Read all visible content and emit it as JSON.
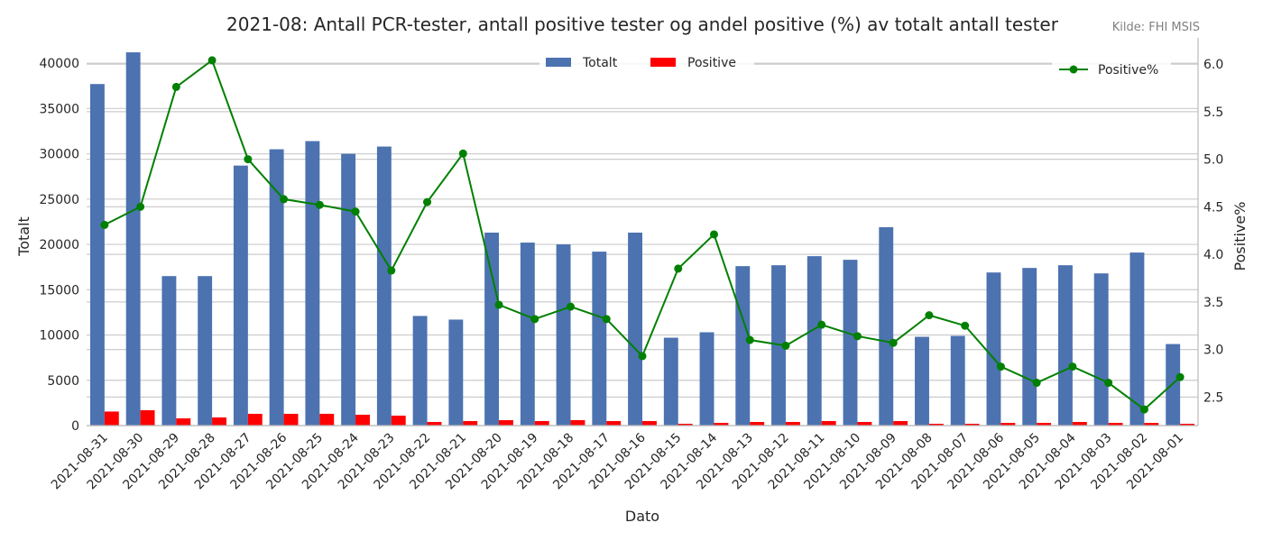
{
  "chart_data": {
    "type": "bar",
    "title": "2021-08: Antall PCR-tester, antall positive tester og andel positive (%) av totalt antall tester",
    "source": "Kilde: FHI MSIS",
    "xlabel": "Dato",
    "ylabel": "Totalt",
    "y2label": "Positive%",
    "ylim": [
      0,
      42000
    ],
    "y2lim": [
      2.2,
      6.2
    ],
    "yticks": [
      0,
      5000,
      10000,
      15000,
      20000,
      25000,
      30000,
      35000,
      40000
    ],
    "y2ticks": [
      2.5,
      3.0,
      3.5,
      4.0,
      4.5,
      5.0,
      5.5,
      6.0
    ],
    "grid": true,
    "legend_bars_placement": "top-center",
    "legend_line_placement": "top-right",
    "categories": [
      "2021-08-31",
      "2021-08-30",
      "2021-08-29",
      "2021-08-28",
      "2021-08-27",
      "2021-08-26",
      "2021-08-25",
      "2021-08-24",
      "2021-08-23",
      "2021-08-22",
      "2021-08-21",
      "2021-08-20",
      "2021-08-19",
      "2021-08-18",
      "2021-08-17",
      "2021-08-16",
      "2021-08-15",
      "2021-08-14",
      "2021-08-13",
      "2021-08-12",
      "2021-08-11",
      "2021-08-10",
      "2021-08-09",
      "2021-08-08",
      "2021-08-07",
      "2021-08-06",
      "2021-08-05",
      "2021-08-04",
      "2021-08-03",
      "2021-08-02",
      "2021-08-01"
    ],
    "series": [
      {
        "name": "Totalt",
        "type": "bar",
        "axis": "left",
        "color": "#4c72b0",
        "values": [
          37700,
          41200,
          16500,
          16500,
          28700,
          30500,
          31400,
          30000,
          30800,
          12100,
          11700,
          21300,
          20200,
          20000,
          19200,
          21300,
          9700,
          10300,
          17600,
          17700,
          18700,
          18300,
          21900,
          9800,
          9900,
          16900,
          17400,
          17700,
          16800,
          19100,
          9000
        ]
      },
      {
        "name": "Positive",
        "type": "bar",
        "axis": "left",
        "color": "#ff0000",
        "values": [
          1550,
          1700,
          800,
          900,
          1300,
          1300,
          1300,
          1200,
          1100,
          400,
          500,
          600,
          500,
          600,
          500,
          500,
          200,
          300,
          400,
          400,
          500,
          400,
          500,
          200,
          200,
          300,
          300,
          400,
          300,
          300,
          200
        ]
      },
      {
        "name": "Positive%",
        "type": "line",
        "axis": "right",
        "color": "#008000",
        "values": [
          4.31,
          4.5,
          5.76,
          6.04,
          5.0,
          4.58,
          4.52,
          4.45,
          3.83,
          4.55,
          5.06,
          3.47,
          3.32,
          3.45,
          3.32,
          2.93,
          3.85,
          4.21,
          3.1,
          3.04,
          3.26,
          3.14,
          3.07,
          3.36,
          3.25,
          2.82,
          2.65,
          2.82,
          2.65,
          2.37,
          2.71
        ]
      }
    ]
  }
}
